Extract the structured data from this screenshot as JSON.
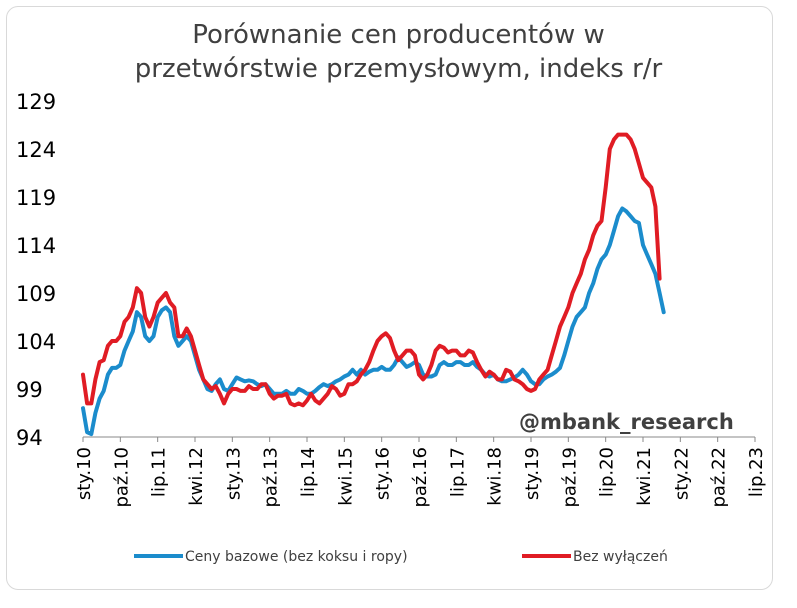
{
  "chart_data": {
    "type": "line",
    "title_line1": "Porównanie cen producentów w",
    "title_line2": "przetwórstwie przemysłowym, indeks r/r",
    "ylim": [
      94,
      129
    ],
    "yticks": [
      "129",
      "124",
      "119",
      "114",
      "109",
      "104",
      "99",
      "94"
    ],
    "x_tick_labels": [
      "sty.10",
      "paź.10",
      "lip.11",
      "kwi.12",
      "sty.13",
      "paź.13",
      "lip.14",
      "kwi.15",
      "sty.16",
      "paź.16",
      "lip.17",
      "kwi.18",
      "sty.19",
      "paź.19",
      "lip.20",
      "kwi.21",
      "sty.22",
      "paź.22",
      "lip.23"
    ],
    "watermark": "@mbank_research",
    "series": [
      {
        "name": "Ceny bazowe (bez koksu i ropy)",
        "color": "#1b8ccc",
        "points": [
          [
            0,
            97
          ],
          [
            1,
            94.5
          ],
          [
            2,
            94.3
          ],
          [
            3,
            96.5
          ],
          [
            4,
            98
          ],
          [
            5,
            98.8
          ],
          [
            6,
            100.5
          ],
          [
            7,
            101.2
          ],
          [
            8,
            101.2
          ],
          [
            9,
            101.5
          ],
          [
            10,
            103
          ],
          [
            11,
            104
          ],
          [
            12,
            105
          ],
          [
            13,
            107
          ],
          [
            14,
            106.5
          ],
          [
            15,
            104.5
          ],
          [
            16,
            104
          ],
          [
            17,
            104.5
          ],
          [
            18,
            106.5
          ],
          [
            19,
            107.2
          ],
          [
            20,
            107.5
          ],
          [
            21,
            107
          ],
          [
            22,
            104.5
          ],
          [
            23,
            103.5
          ],
          [
            24,
            104
          ],
          [
            25,
            104.5
          ],
          [
            26,
            104
          ],
          [
            27,
            102.5
          ],
          [
            28,
            101
          ],
          [
            29,
            100
          ],
          [
            30,
            99
          ],
          [
            31,
            98.8
          ],
          [
            32,
            99.5
          ],
          [
            33,
            100
          ],
          [
            34,
            99
          ],
          [
            35,
            98.8
          ],
          [
            36,
            99.5
          ],
          [
            37,
            100.2
          ],
          [
            38,
            100
          ],
          [
            39,
            99.8
          ],
          [
            40,
            99.9
          ],
          [
            41,
            99.8
          ],
          [
            42,
            99.5
          ],
          [
            43,
            99.3
          ],
          [
            44,
            99.5
          ],
          [
            45,
            99
          ],
          [
            46,
            98.5
          ],
          [
            47,
            98.5
          ],
          [
            48,
            98.5
          ],
          [
            49,
            98.8
          ],
          [
            50,
            98.5
          ],
          [
            51,
            98.5
          ],
          [
            52,
            99
          ],
          [
            53,
            98.8
          ],
          [
            54,
            98.5
          ],
          [
            55,
            98.5
          ],
          [
            56,
            98.8
          ],
          [
            57,
            99.2
          ],
          [
            58,
            99.5
          ],
          [
            59,
            99.3
          ],
          [
            60,
            99.5
          ],
          [
            61,
            99.8
          ],
          [
            62,
            100
          ],
          [
            63,
            100.3
          ],
          [
            64,
            100.5
          ],
          [
            65,
            101
          ],
          [
            66,
            100.5
          ],
          [
            67,
            101
          ],
          [
            68,
            100.5
          ],
          [
            69,
            100.8
          ],
          [
            70,
            101
          ],
          [
            71,
            101
          ],
          [
            72,
            101.3
          ],
          [
            73,
            101
          ],
          [
            74,
            101
          ],
          [
            75,
            101.5
          ],
          [
            76,
            102.3
          ],
          [
            77,
            101.8
          ],
          [
            78,
            101.3
          ],
          [
            79,
            101.5
          ],
          [
            80,
            101.8
          ],
          [
            81,
            101.5
          ],
          [
            82,
            100.5
          ],
          [
            83,
            100.3
          ],
          [
            84,
            100.3
          ],
          [
            85,
            100.5
          ],
          [
            86,
            101.5
          ],
          [
            87,
            101.8
          ],
          [
            88,
            101.5
          ],
          [
            89,
            101.5
          ],
          [
            90,
            101.8
          ],
          [
            91,
            101.8
          ],
          [
            92,
            101.5
          ],
          [
            93,
            101.5
          ],
          [
            94,
            101.8
          ],
          [
            95,
            101.3
          ],
          [
            96,
            101
          ],
          [
            97,
            100.5
          ],
          [
            98,
            100.3
          ],
          [
            99,
            100.5
          ],
          [
            100,
            100
          ],
          [
            101,
            99.8
          ],
          [
            102,
            99.8
          ],
          [
            103,
            100
          ],
          [
            104,
            100.2
          ],
          [
            105,
            100.5
          ],
          [
            106,
            101
          ],
          [
            107,
            100.5
          ],
          [
            108,
            99.8
          ],
          [
            109,
            99.5
          ],
          [
            110,
            99.5
          ],
          [
            111,
            100
          ],
          [
            112,
            100.3
          ],
          [
            113,
            100.5
          ],
          [
            114,
            100.8
          ],
          [
            115,
            101.2
          ],
          [
            116,
            102.5
          ],
          [
            117,
            104
          ],
          [
            118,
            105.5
          ],
          [
            119,
            106.5
          ],
          [
            120,
            107
          ],
          [
            121,
            107.5
          ],
          [
            122,
            109
          ],
          [
            123,
            110
          ],
          [
            124,
            111.5
          ],
          [
            125,
            112.5
          ],
          [
            126,
            113
          ],
          [
            127,
            114
          ],
          [
            128,
            115.5
          ],
          [
            129,
            117
          ],
          [
            130,
            117.8
          ],
          [
            131,
            117.5
          ],
          [
            132,
            117
          ],
          [
            133,
            116.5
          ],
          [
            134,
            116.3
          ],
          [
            135,
            114
          ],
          [
            136,
            113
          ],
          [
            137,
            112
          ],
          [
            138,
            111
          ],
          [
            139,
            109
          ],
          [
            140,
            107
          ]
        ]
      },
      {
        "name": "Bez wyłączeń",
        "color": "#e01c24",
        "points": [
          [
            0,
            100.5
          ],
          [
            1,
            97.5
          ],
          [
            2,
            97.5
          ],
          [
            3,
            100
          ],
          [
            4,
            101.8
          ],
          [
            5,
            102
          ],
          [
            6,
            103.5
          ],
          [
            7,
            104
          ],
          [
            8,
            104
          ],
          [
            9,
            104.5
          ],
          [
            10,
            106
          ],
          [
            11,
            106.5
          ],
          [
            12,
            107.5
          ],
          [
            13,
            109.5
          ],
          [
            14,
            109
          ],
          [
            15,
            106.5
          ],
          [
            16,
            105.5
          ],
          [
            17,
            106.5
          ],
          [
            18,
            108
          ],
          [
            19,
            108.5
          ],
          [
            20,
            109
          ],
          [
            21,
            108
          ],
          [
            22,
            107.5
          ],
          [
            23,
            104.5
          ],
          [
            24,
            104.5
          ],
          [
            25,
            105.3
          ],
          [
            26,
            104.5
          ],
          [
            27,
            103
          ],
          [
            28,
            101.5
          ],
          [
            29,
            100
          ],
          [
            30,
            99.5
          ],
          [
            31,
            99
          ],
          [
            32,
            99.3
          ],
          [
            33,
            98.5
          ],
          [
            34,
            97.5
          ],
          [
            35,
            98.5
          ],
          [
            36,
            99
          ],
          [
            37,
            99
          ],
          [
            38,
            98.8
          ],
          [
            39,
            98.8
          ],
          [
            40,
            99.3
          ],
          [
            41,
            99
          ],
          [
            42,
            99
          ],
          [
            43,
            99.5
          ],
          [
            44,
            99.5
          ],
          [
            45,
            98.5
          ],
          [
            46,
            98
          ],
          [
            47,
            98.3
          ],
          [
            48,
            98.3
          ],
          [
            49,
            98.5
          ],
          [
            50,
            97.5
          ],
          [
            51,
            97.3
          ],
          [
            52,
            97.5
          ],
          [
            53,
            97.3
          ],
          [
            54,
            97.8
          ],
          [
            55,
            98.5
          ],
          [
            56,
            97.8
          ],
          [
            57,
            97.5
          ],
          [
            58,
            98
          ],
          [
            59,
            98.5
          ],
          [
            60,
            99.3
          ],
          [
            61,
            99
          ],
          [
            62,
            98.3
          ],
          [
            63,
            98.5
          ],
          [
            64,
            99.5
          ],
          [
            65,
            99.5
          ],
          [
            66,
            99.8
          ],
          [
            67,
            100.5
          ],
          [
            68,
            101
          ],
          [
            69,
            101.8
          ],
          [
            70,
            103
          ],
          [
            71,
            104
          ],
          [
            72,
            104.5
          ],
          [
            73,
            104.8
          ],
          [
            74,
            104.3
          ],
          [
            75,
            103
          ],
          [
            76,
            102
          ],
          [
            77,
            102.5
          ],
          [
            78,
            103
          ],
          [
            79,
            103
          ],
          [
            80,
            102.5
          ],
          [
            81,
            100.5
          ],
          [
            82,
            100
          ],
          [
            83,
            100.5
          ],
          [
            84,
            101.5
          ],
          [
            85,
            103
          ],
          [
            86,
            103.5
          ],
          [
            87,
            103.3
          ],
          [
            88,
            102.8
          ],
          [
            89,
            103
          ],
          [
            90,
            103
          ],
          [
            91,
            102.5
          ],
          [
            92,
            102.5
          ],
          [
            93,
            103
          ],
          [
            94,
            102.8
          ],
          [
            95,
            101.8
          ],
          [
            96,
            101
          ],
          [
            97,
            100.3
          ],
          [
            98,
            100.8
          ],
          [
            99,
            100.5
          ],
          [
            100,
            100
          ],
          [
            101,
            100
          ],
          [
            102,
            101
          ],
          [
            103,
            100.8
          ],
          [
            104,
            100
          ],
          [
            105,
            99.8
          ],
          [
            106,
            99.5
          ],
          [
            107,
            99
          ],
          [
            108,
            98.8
          ],
          [
            109,
            99
          ],
          [
            110,
            100
          ],
          [
            111,
            100.5
          ],
          [
            112,
            101
          ],
          [
            113,
            102.5
          ],
          [
            114,
            104
          ],
          [
            115,
            105.5
          ],
          [
            116,
            106.5
          ],
          [
            117,
            107.5
          ],
          [
            118,
            109
          ],
          [
            119,
            110
          ],
          [
            120,
            111
          ],
          [
            121,
            112.5
          ],
          [
            122,
            113.5
          ],
          [
            123,
            115
          ],
          [
            124,
            116
          ],
          [
            125,
            116.5
          ],
          [
            126,
            120
          ],
          [
            127,
            124
          ],
          [
            128,
            125
          ],
          [
            129,
            125.5
          ],
          [
            130,
            125.5
          ],
          [
            131,
            125.5
          ],
          [
            132,
            125
          ],
          [
            133,
            124
          ],
          [
            134,
            122.5
          ],
          [
            135,
            121
          ],
          [
            136,
            120.5
          ],
          [
            137,
            120
          ],
          [
            138,
            118
          ],
          [
            139,
            110.5
          ]
        ]
      }
    ]
  }
}
